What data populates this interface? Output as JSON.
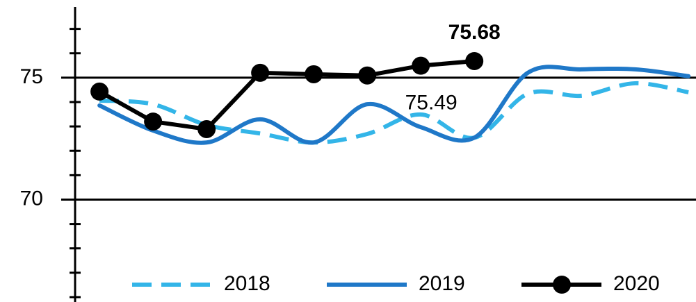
{
  "chart_data": {
    "type": "line",
    "x": [
      1,
      2,
      3,
      4,
      5,
      6,
      7,
      8,
      9,
      10,
      11,
      12
    ],
    "xlim": [
      0.44,
      12.14
    ],
    "ylim": [
      65.8,
      77.9
    ],
    "yticks": [
      70,
      75
    ],
    "yminor_ticks": [
      66,
      67,
      68,
      69,
      71,
      72,
      73,
      74,
      76,
      77
    ],
    "grid": true,
    "legend": "bottom",
    "series": [
      {
        "name": "2018",
        "color": "#33b5e8",
        "style": "dashed",
        "smooth": true,
        "values": [
          74.06,
          73.91,
          73.06,
          72.71,
          72.34,
          72.69,
          73.49,
          72.54,
          74.34,
          74.26,
          74.77,
          74.4
        ]
      },
      {
        "name": "2019",
        "color": "#1f78c8",
        "style": "solid",
        "smooth": true,
        "values": [
          73.86,
          72.83,
          72.34,
          73.29,
          72.34,
          73.91,
          72.97,
          72.54,
          75.2,
          75.34,
          75.34,
          75.06
        ]
      },
      {
        "name": "2020",
        "color": "#000000",
        "style": "solid",
        "smooth": false,
        "markers": true,
        "values": [
          74.43,
          73.2,
          72.89,
          75.2,
          75.14,
          75.09,
          75.49,
          75.68,
          null,
          null,
          null,
          null
        ]
      }
    ],
    "annotations": [
      {
        "text": "75.68",
        "series": 2,
        "index": 7,
        "bold": true
      },
      {
        "text": "75.49",
        "series": 2,
        "index": 6,
        "bold": false
      }
    ]
  }
}
